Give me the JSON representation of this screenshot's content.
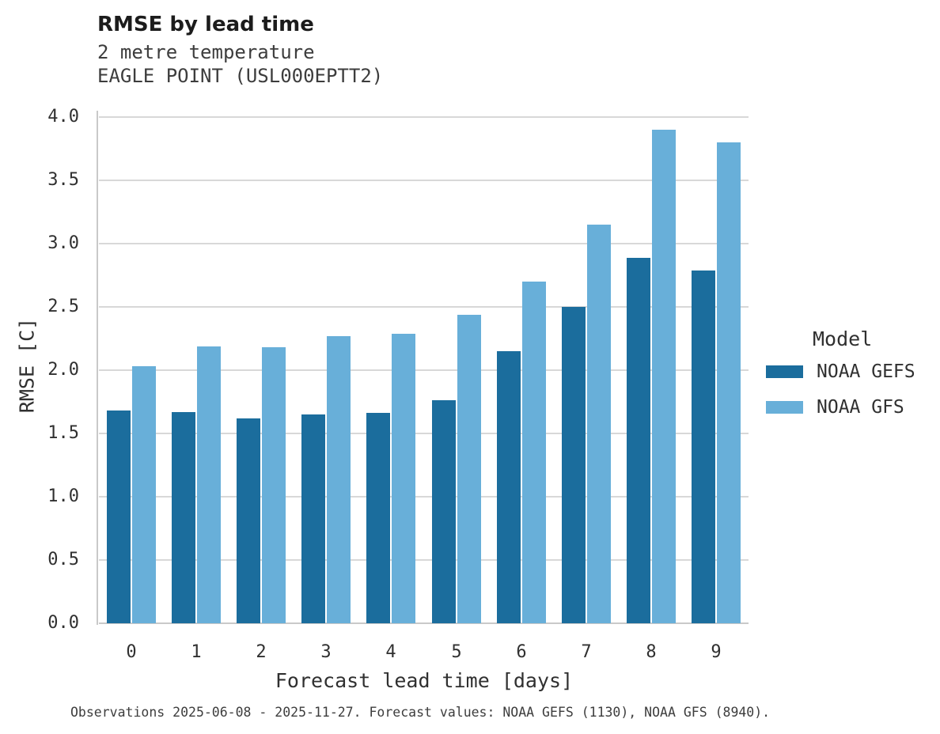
{
  "header": {
    "title": "RMSE by lead time",
    "subtitle_line1": "2 metre temperature",
    "subtitle_line2": "EAGLE POINT (USL000EPTT2)"
  },
  "chart_data": {
    "type": "bar",
    "title": "RMSE by lead time",
    "subtitle": [
      "2 metre temperature",
      "EAGLE POINT (USL000EPTT2)"
    ],
    "categories": [
      "0",
      "1",
      "2",
      "3",
      "4",
      "5",
      "6",
      "7",
      "8",
      "9"
    ],
    "series": [
      {
        "name": "NOAA GEFS",
        "color": "#1b6d9d",
        "values": [
          1.68,
          1.67,
          1.62,
          1.65,
          1.66,
          1.76,
          2.15,
          2.5,
          2.89,
          2.79
        ]
      },
      {
        "name": "NOAA GFS",
        "color": "#68afd9",
        "values": [
          2.03,
          2.19,
          2.18,
          2.27,
          2.29,
          2.44,
          2.7,
          3.15,
          3.9,
          3.8
        ]
      }
    ],
    "xlabel": "Forecast lead time [days]",
    "ylabel": "RMSE [C]",
    "ylim": [
      0.0,
      4.0
    ],
    "ytick_step": 0.5,
    "ytick_labels": [
      "0.0",
      "0.5",
      "1.0",
      "1.5",
      "2.0",
      "2.5",
      "3.0",
      "3.5",
      "4.0"
    ],
    "grid": "horizontal-major",
    "legend_title": "Model",
    "legend_position": "right-middle"
  },
  "legend": {
    "title": "Model",
    "entries": [
      {
        "label": "NOAA GEFS",
        "color": "#1b6d9d"
      },
      {
        "label": "NOAA GFS",
        "color": "#68afd9"
      }
    ]
  },
  "caption": {
    "text": "Observations 2025-06-08 - 2025-11-27. Forecast values: NOAA GEFS (1130), NOAA GFS (8940)."
  },
  "colors": {
    "gridline": "#d8d8d8",
    "axis": "#c9c9c9",
    "title_text": "#1c1c1c",
    "body_text": "#303030"
  }
}
